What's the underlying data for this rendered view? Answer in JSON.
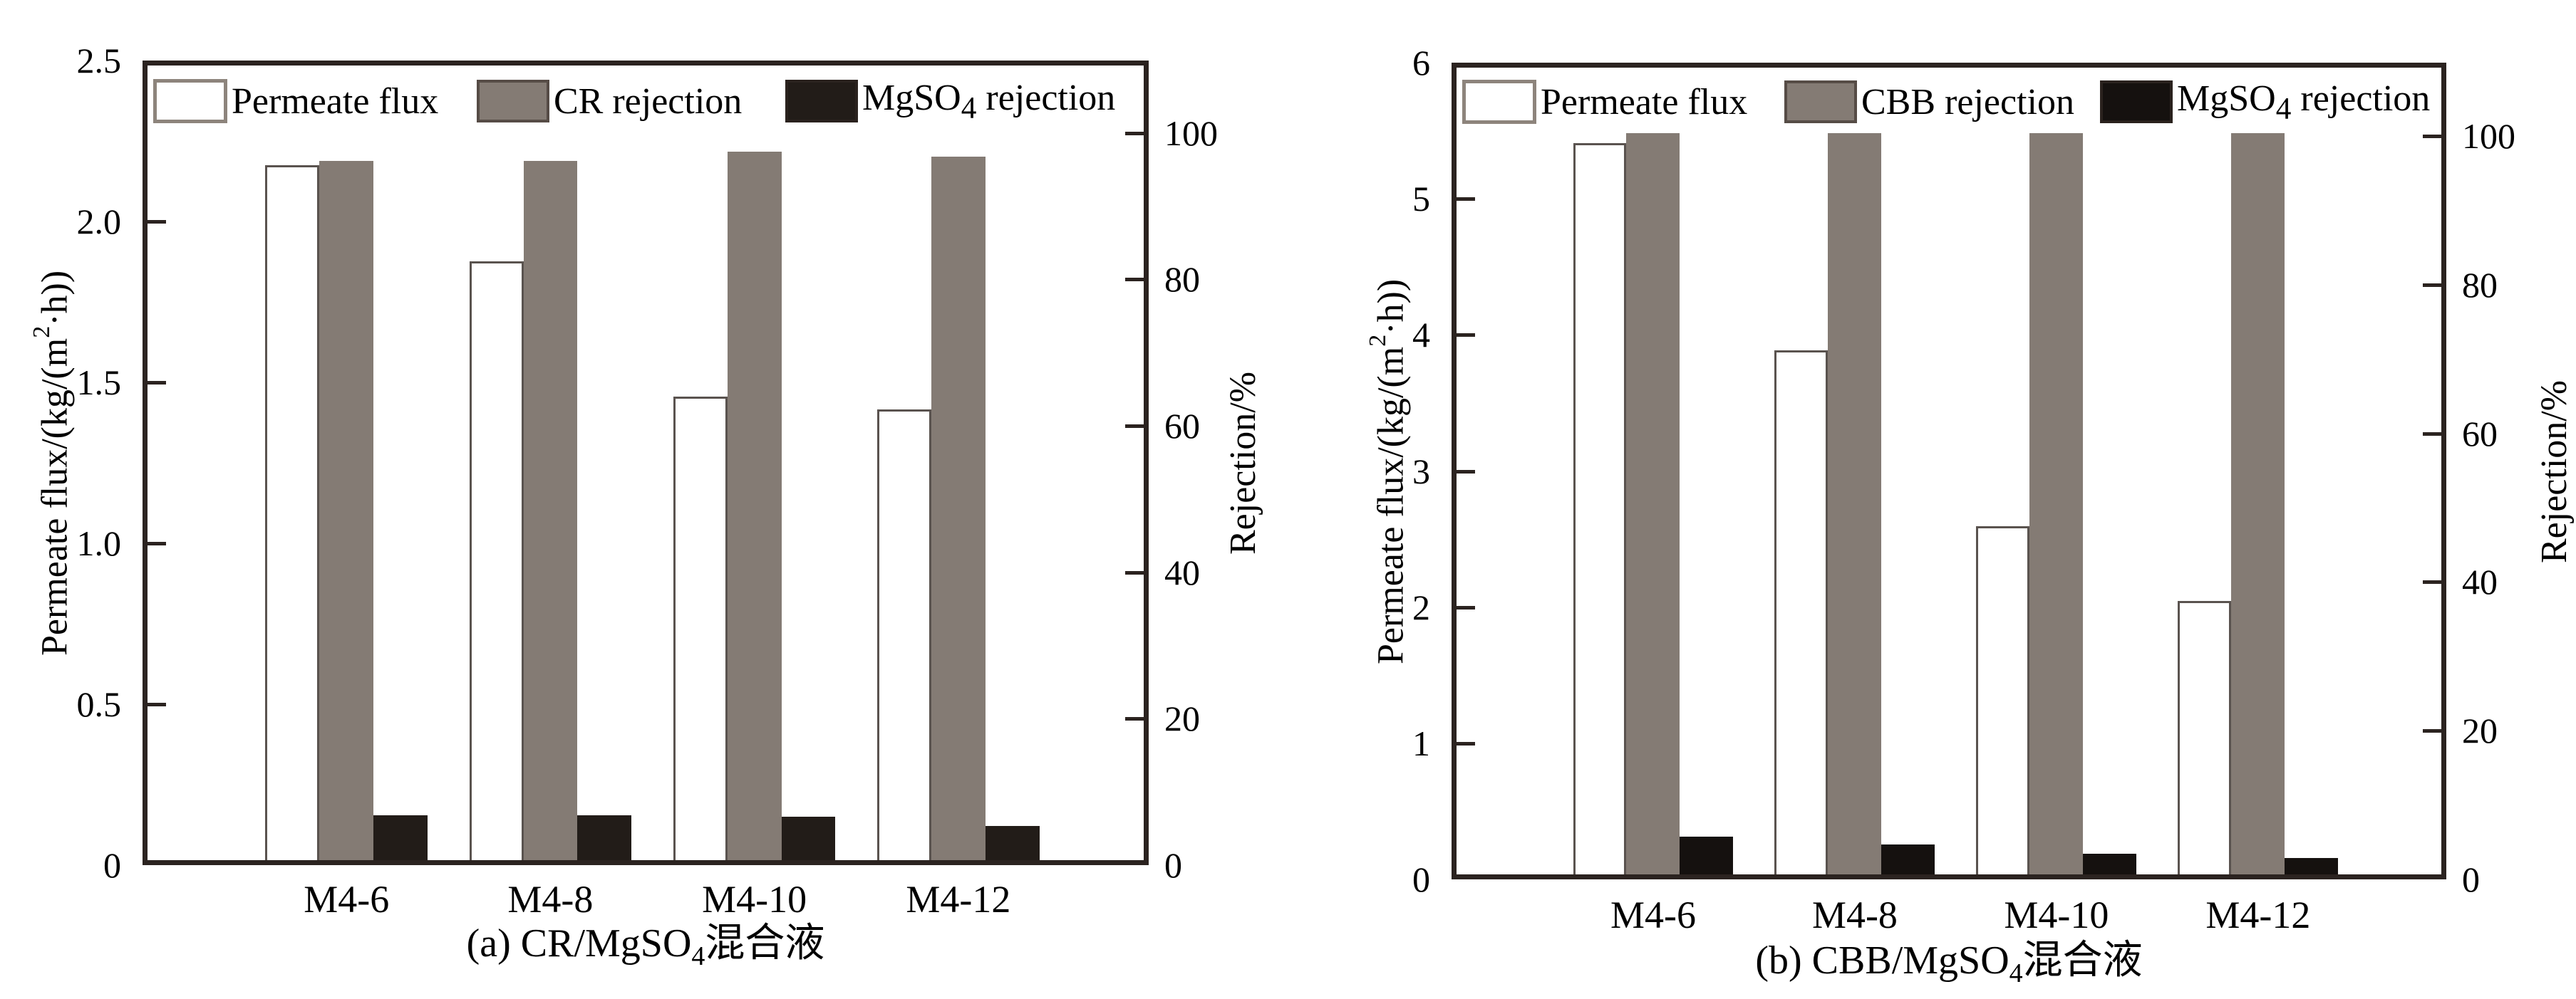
{
  "chart_data": [
    {
      "type": "bar",
      "panel": "a",
      "caption": {
        "pre": "(a) CR/MgSO",
        "sub": "4",
        "post": "混合液"
      },
      "categories": [
        "M4-6",
        "M4-8",
        "M4-10",
        "M4-12"
      ],
      "left_axis": {
        "title_pre": "Permeate flux/(kg/(m",
        "title_sup": "2",
        "title_post": "·h))",
        "ticks": [
          "0",
          "0.5",
          "1.0",
          "1.5",
          "2.0",
          "2.5"
        ],
        "max": 2.5
      },
      "right_axis": {
        "title": "Rejection/%",
        "ticks": [
          "0",
          "20",
          "40",
          "60",
          "80",
          "100"
        ],
        "max": 100,
        "top_fraction": 0.91
      },
      "legend": [
        {
          "label": "Permeate flux",
          "swatch": "white"
        },
        {
          "label": "CR rejection",
          "swatch": "gray"
        },
        {
          "label_pre": "MgSO",
          "label_sub": "4",
          "label_post": " rejection",
          "swatch": "dark"
        }
      ],
      "series": [
        {
          "name": "Permeate flux",
          "axis": "left",
          "style": "white",
          "values": [
            2.16,
            1.86,
            1.44,
            1.4
          ]
        },
        {
          "name": "CR rejection",
          "axis": "right",
          "style": "gray",
          "values": [
            95.5,
            95.5,
            96.8,
            96.1
          ]
        },
        {
          "name": "MgSO4 rejection",
          "axis": "right",
          "style": "dark",
          "values": [
            6.1,
            6.1,
            5.9,
            4.7
          ]
        }
      ],
      "colors": {
        "gray": "#847b74",
        "dark": "#221c18",
        "white": "#ffffff",
        "frame": "#2b2320"
      },
      "grid": "off",
      "legend_position": "top-inside"
    },
    {
      "type": "bar",
      "panel": "b",
      "caption": {
        "pre": "(b) CBB/MgSO",
        "sub": "4",
        "post": "混合液"
      },
      "categories": [
        "M4-6",
        "M4-8",
        "M4-10",
        "M4-12"
      ],
      "left_axis": {
        "title_pre": "Permeate flux/(kg/(m",
        "title_sup": "2",
        "title_post": "·h))",
        "ticks": [
          "0",
          "1",
          "2",
          "3",
          "4",
          "5",
          "6"
        ],
        "max": 6
      },
      "right_axis": {
        "title": "Rejection/%",
        "ticks": [
          "0",
          "20",
          "40",
          "60",
          "80",
          "100"
        ],
        "max": 100,
        "top_fraction": 0.91
      },
      "legend": [
        {
          "label": "Permeate flux",
          "swatch": "white"
        },
        {
          "label": "CBB rejection",
          "swatch": "gray"
        },
        {
          "label_pre": "MgSO",
          "label_sub": "4",
          "label_post": " rejection",
          "swatch": "dark"
        }
      ],
      "series": [
        {
          "name": "Permeate flux",
          "axis": "left",
          "style": "white",
          "values": [
            5.37,
            3.85,
            2.56,
            2.01
          ]
        },
        {
          "name": "CBB rejection",
          "axis": "right",
          "style": "gray",
          "values": [
            99.7,
            99.7,
            99.7,
            99.7
          ]
        },
        {
          "name": "MgSO4 rejection",
          "axis": "right",
          "style": "dark",
          "values": [
            5.1,
            4.0,
            2.8,
            2.2
          ]
        }
      ],
      "colors": {
        "gray": "#847b74",
        "dark": "#15110f",
        "white": "#ffffff",
        "frame": "#2b2320"
      },
      "grid": "off",
      "legend_position": "top-inside"
    }
  ]
}
